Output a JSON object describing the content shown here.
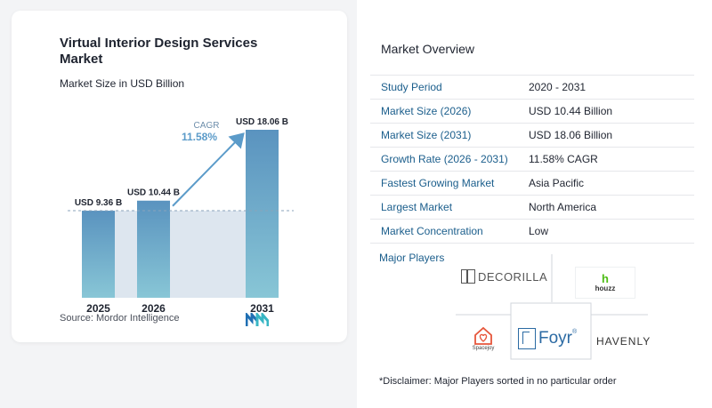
{
  "chart_data": {
    "type": "bar",
    "title": "Virtual Interior Design Services Market",
    "subtitle": "Market Size in USD Billion",
    "categories": [
      "2025",
      "2026",
      "2031"
    ],
    "values": [
      9.36,
      10.44,
      18.06
    ],
    "value_labels": [
      "USD 9.36 B",
      "USD 10.44 B",
      "USD 18.06 B"
    ],
    "cagr_label": "CAGR",
    "cagr_value": "11.58%",
    "ylim": [
      0,
      18.06
    ],
    "colors": {
      "bar_top": "#5a93bf",
      "bar_bottom": "#88c6d6",
      "shade": "#dde6ef",
      "arrow": "#5b9bc9"
    }
  },
  "source": "Source:  Mordor Intelligence",
  "overview": {
    "title": "Market Overview",
    "rows": [
      {
        "key": "Study Period",
        "value": "2020 - 2031"
      },
      {
        "key": "Market Size (2026)",
        "value": "USD 10.44 Billion"
      },
      {
        "key": "Market Size (2031)",
        "value": "USD 18.06 Billion"
      },
      {
        "key": "Growth Rate (2026 - 2031)",
        "value": "11.58% CAGR"
      },
      {
        "key": "Fastest Growing Market",
        "value": "Asia Pacific"
      },
      {
        "key": "Largest Market",
        "value": "North America"
      },
      {
        "key": "Market Concentration",
        "value": "Low"
      }
    ]
  },
  "players": {
    "title": "Major Players",
    "decorilla": "DECORILLA",
    "houzz": "houzz",
    "spacejoy": "Spacejoy",
    "foyr": "Foyr",
    "havenly": "HAVENLY"
  },
  "disclaimer": "*Disclaimer: Major Players sorted in no particular order"
}
